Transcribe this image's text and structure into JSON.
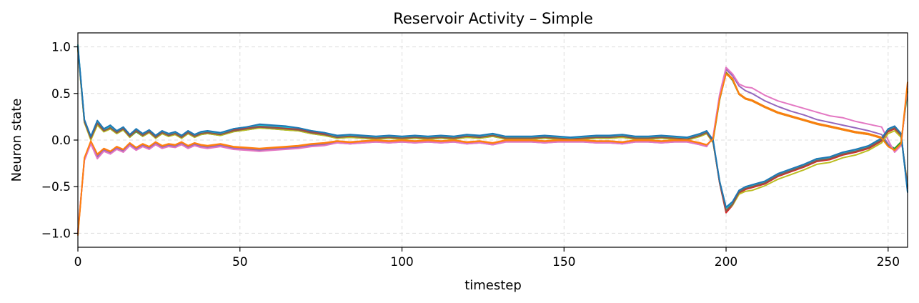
{
  "chart_data": {
    "type": "line",
    "title": "Reservoir Activity – Simple",
    "xlabel": "timestep",
    "ylabel": "Neuron state",
    "xlim": [
      0,
      256
    ],
    "ylim": [
      -1.15,
      1.15
    ],
    "xticks": [
      0,
      50,
      100,
      150,
      200,
      250
    ],
    "xtick_labels": [
      "0",
      "50",
      "100",
      "150",
      "200",
      "250"
    ],
    "yticks": [
      -1.0,
      -0.5,
      0.0,
      0.5,
      1.0
    ],
    "ytick_labels": [
      "−1.0",
      "−0.5",
      "0.0",
      "0.5",
      "1.0"
    ],
    "grid": true,
    "legend": "none",
    "x": [
      0,
      2,
      4,
      6,
      8,
      10,
      12,
      14,
      16,
      18,
      20,
      22,
      24,
      26,
      28,
      30,
      32,
      34,
      36,
      38,
      40,
      44,
      48,
      52,
      56,
      60,
      64,
      68,
      72,
      76,
      80,
      84,
      88,
      92,
      96,
      100,
      104,
      108,
      112,
      116,
      120,
      124,
      128,
      132,
      136,
      140,
      144,
      148,
      152,
      156,
      160,
      164,
      168,
      172,
      176,
      180,
      184,
      188,
      192,
      194,
      196,
      198,
      200,
      202,
      204,
      206,
      208,
      212,
      216,
      220,
      224,
      228,
      232,
      236,
      240,
      244,
      248,
      250,
      252,
      254,
      256
    ],
    "series": [
      {
        "color": "#1f77b4",
        "values": [
          1.0,
          0.2,
          0.02,
          0.18,
          0.1,
          0.13,
          0.08,
          0.12,
          0.04,
          0.1,
          0.05,
          0.09,
          0.03,
          0.08,
          0.05,
          0.07,
          0.03,
          0.08,
          0.04,
          0.07,
          0.08,
          0.06,
          0.1,
          0.12,
          0.14,
          0.13,
          0.12,
          0.11,
          0.08,
          0.06,
          0.03,
          0.04,
          0.03,
          0.02,
          0.03,
          0.02,
          0.03,
          0.02,
          0.03,
          0.02,
          0.04,
          0.03,
          0.05,
          0.02,
          0.02,
          0.02,
          0.03,
          0.02,
          0.01,
          0.02,
          0.03,
          0.03,
          0.04,
          0.02,
          0.02,
          0.03,
          0.02,
          0.01,
          0.05,
          0.08,
          -0.02,
          -0.45,
          -0.74,
          -0.68,
          -0.56,
          -0.52,
          -0.5,
          -0.46,
          -0.38,
          -0.33,
          -0.28,
          -0.22,
          -0.2,
          -0.15,
          -0.12,
          -0.08,
          0.0,
          0.1,
          0.13,
          0.05,
          -0.5
        ]
      },
      {
        "color": "#ff7f0e",
        "values": [
          -1.0,
          -0.2,
          -0.02,
          -0.16,
          -0.1,
          -0.13,
          -0.08,
          -0.11,
          -0.04,
          -0.09,
          -0.05,
          -0.08,
          -0.03,
          -0.07,
          -0.05,
          -0.06,
          -0.03,
          -0.07,
          -0.04,
          -0.06,
          -0.07,
          -0.05,
          -0.08,
          -0.09,
          -0.1,
          -0.09,
          -0.08,
          -0.07,
          -0.05,
          -0.04,
          -0.02,
          -0.03,
          -0.02,
          -0.01,
          -0.02,
          -0.01,
          -0.02,
          -0.01,
          -0.02,
          -0.01,
          -0.03,
          -0.02,
          -0.04,
          -0.01,
          -0.01,
          -0.01,
          -0.02,
          -0.01,
          -0.01,
          -0.01,
          -0.02,
          -0.02,
          -0.03,
          -0.01,
          -0.01,
          -0.02,
          -0.01,
          -0.01,
          -0.04,
          -0.06,
          0.02,
          0.46,
          0.73,
          0.66,
          0.5,
          0.45,
          0.43,
          0.36,
          0.3,
          0.26,
          0.22,
          0.18,
          0.15,
          0.12,
          0.09,
          0.07,
          0.03,
          -0.06,
          -0.1,
          -0.03,
          0.55
        ]
      },
      {
        "color": "#2ca02c",
        "values": [
          0.98,
          0.19,
          0.01,
          0.17,
          0.09,
          0.12,
          0.07,
          0.11,
          0.03,
          0.09,
          0.04,
          0.08,
          0.02,
          0.07,
          0.04,
          0.06,
          0.02,
          0.07,
          0.03,
          0.06,
          0.07,
          0.05,
          0.09,
          0.11,
          0.13,
          0.12,
          0.11,
          0.1,
          0.07,
          0.05,
          0.02,
          0.03,
          0.02,
          0.01,
          0.02,
          0.01,
          0.02,
          0.01,
          0.02,
          0.01,
          0.03,
          0.02,
          0.04,
          0.01,
          0.01,
          0.01,
          0.02,
          0.01,
          0.0,
          0.01,
          0.02,
          0.02,
          0.03,
          0.01,
          0.01,
          0.02,
          0.01,
          0.0,
          0.04,
          0.07,
          0.0,
          0.43,
          0.72,
          0.64,
          0.49,
          0.44,
          0.42,
          0.35,
          0.29,
          0.25,
          0.21,
          0.17,
          0.14,
          0.11,
          0.08,
          0.06,
          0.02,
          -0.05,
          -0.09,
          -0.02,
          0.52
        ]
      },
      {
        "color": "#d62728",
        "values": [
          0.99,
          0.21,
          0.03,
          0.19,
          0.11,
          0.14,
          0.09,
          0.13,
          0.05,
          0.11,
          0.06,
          0.1,
          0.04,
          0.09,
          0.06,
          0.08,
          0.04,
          0.09,
          0.05,
          0.08,
          0.09,
          0.07,
          0.11,
          0.13,
          0.15,
          0.14,
          0.13,
          0.12,
          0.09,
          0.07,
          0.04,
          0.05,
          0.04,
          0.03,
          0.04,
          0.03,
          0.04,
          0.03,
          0.04,
          0.03,
          0.05,
          0.04,
          0.06,
          0.03,
          0.03,
          0.03,
          0.04,
          0.03,
          0.02,
          0.03,
          0.04,
          0.04,
          0.05,
          0.03,
          0.03,
          0.04,
          0.03,
          0.02,
          0.06,
          0.09,
          -0.01,
          -0.46,
          -0.78,
          -0.7,
          -0.57,
          -0.53,
          -0.51,
          -0.47,
          -0.39,
          -0.34,
          -0.29,
          -0.23,
          -0.21,
          -0.16,
          -0.13,
          -0.09,
          -0.01,
          0.09,
          0.12,
          0.04,
          -0.52
        ]
      },
      {
        "color": "#9467bd",
        "values": [
          -0.99,
          -0.21,
          -0.03,
          -0.18,
          -0.11,
          -0.14,
          -0.09,
          -0.12,
          -0.05,
          -0.1,
          -0.06,
          -0.09,
          -0.04,
          -0.08,
          -0.06,
          -0.07,
          -0.04,
          -0.08,
          -0.05,
          -0.07,
          -0.08,
          -0.06,
          -0.09,
          -0.1,
          -0.11,
          -0.1,
          -0.09,
          -0.08,
          -0.06,
          -0.05,
          -0.03,
          -0.04,
          -0.03,
          -0.02,
          -0.03,
          -0.02,
          -0.03,
          -0.02,
          -0.03,
          -0.02,
          -0.04,
          -0.03,
          -0.05,
          -0.02,
          -0.02,
          -0.02,
          -0.03,
          -0.02,
          -0.02,
          -0.02,
          -0.03,
          -0.03,
          -0.04,
          -0.02,
          -0.02,
          -0.03,
          -0.02,
          -0.02,
          -0.05,
          -0.07,
          0.03,
          0.48,
          0.76,
          0.69,
          0.58,
          0.53,
          0.5,
          0.42,
          0.36,
          0.31,
          0.27,
          0.22,
          0.19,
          0.16,
          0.13,
          0.1,
          0.06,
          -0.04,
          -0.12,
          -0.05,
          0.58
        ]
      },
      {
        "color": "#e377c2",
        "values": [
          -0.97,
          -0.22,
          -0.04,
          -0.2,
          -0.12,
          -0.15,
          -0.1,
          -0.13,
          -0.06,
          -0.11,
          -0.07,
          -0.1,
          -0.05,
          -0.09,
          -0.07,
          -0.08,
          -0.05,
          -0.09,
          -0.06,
          -0.08,
          -0.09,
          -0.07,
          -0.1,
          -0.11,
          -0.12,
          -0.11,
          -0.1,
          -0.09,
          -0.07,
          -0.06,
          -0.03,
          -0.04,
          -0.03,
          -0.02,
          -0.03,
          -0.02,
          -0.03,
          -0.02,
          -0.03,
          -0.02,
          -0.04,
          -0.03,
          -0.05,
          -0.02,
          -0.02,
          -0.02,
          -0.03,
          -0.02,
          -0.02,
          -0.02,
          -0.03,
          -0.03,
          -0.04,
          -0.02,
          -0.02,
          -0.03,
          -0.02,
          -0.02,
          -0.05,
          -0.07,
          0.04,
          0.49,
          0.78,
          0.71,
          0.6,
          0.57,
          0.56,
          0.48,
          0.42,
          0.38,
          0.34,
          0.3,
          0.26,
          0.24,
          0.2,
          0.17,
          0.14,
          0.0,
          -0.13,
          -0.06,
          0.6
        ]
      },
      {
        "color": "#bcbd22",
        "values": [
          0.97,
          0.19,
          0.0,
          0.16,
          0.09,
          0.12,
          0.07,
          0.11,
          0.03,
          0.1,
          0.04,
          0.08,
          0.02,
          0.07,
          0.04,
          0.06,
          0.02,
          0.07,
          0.03,
          0.06,
          0.07,
          0.05,
          0.09,
          0.11,
          0.13,
          0.12,
          0.11,
          0.1,
          0.07,
          0.05,
          0.02,
          0.03,
          0.02,
          0.01,
          0.02,
          0.01,
          0.02,
          0.01,
          0.02,
          0.01,
          0.03,
          0.02,
          0.04,
          0.01,
          0.01,
          0.01,
          0.02,
          0.01,
          0.0,
          0.01,
          0.02,
          0.02,
          0.03,
          0.01,
          0.01,
          0.02,
          0.01,
          0.0,
          0.04,
          0.07,
          -0.03,
          -0.44,
          -0.75,
          -0.7,
          -0.58,
          -0.55,
          -0.54,
          -0.49,
          -0.42,
          -0.37,
          -0.32,
          -0.26,
          -0.24,
          -0.19,
          -0.16,
          -0.11,
          -0.03,
          0.07,
          0.1,
          0.03,
          -0.48
        ]
      },
      {
        "color": "#17becf",
        "values": [
          1.02,
          0.21,
          0.03,
          0.2,
          0.11,
          0.15,
          0.09,
          0.13,
          0.05,
          0.12,
          0.06,
          0.1,
          0.04,
          0.09,
          0.06,
          0.08,
          0.04,
          0.09,
          0.05,
          0.08,
          0.09,
          0.07,
          0.12,
          0.14,
          0.16,
          0.15,
          0.14,
          0.13,
          0.1,
          0.08,
          0.04,
          0.05,
          0.04,
          0.03,
          0.04,
          0.03,
          0.04,
          0.03,
          0.04,
          0.03,
          0.05,
          0.04,
          0.06,
          0.03,
          0.03,
          0.03,
          0.04,
          0.03,
          0.02,
          0.03,
          0.04,
          0.04,
          0.05,
          0.03,
          0.03,
          0.04,
          0.03,
          0.02,
          0.06,
          0.09,
          -0.01,
          -0.45,
          -0.73,
          -0.67,
          -0.55,
          -0.51,
          -0.49,
          -0.45,
          -0.37,
          -0.32,
          -0.27,
          -0.21,
          -0.19,
          -0.14,
          -0.11,
          -0.07,
          0.01,
          0.11,
          0.14,
          0.06,
          -0.55
        ]
      },
      {
        "color": "#8c564b",
        "values": [
          0.99,
          0.2,
          0.02,
          0.18,
          0.1,
          0.13,
          0.08,
          0.12,
          0.04,
          0.1,
          0.05,
          0.09,
          0.03,
          0.08,
          0.05,
          0.07,
          0.03,
          0.08,
          0.04,
          0.07,
          0.08,
          0.06,
          0.1,
          0.12,
          0.14,
          0.13,
          0.12,
          0.11,
          0.08,
          0.06,
          0.03,
          0.04,
          0.03,
          0.02,
          0.03,
          0.02,
          0.03,
          0.02,
          0.03,
          0.02,
          0.04,
          0.03,
          0.05,
          0.02,
          0.02,
          0.02,
          0.03,
          0.02,
          0.01,
          0.02,
          0.03,
          0.03,
          0.04,
          0.02,
          0.02,
          0.03,
          0.02,
          0.01,
          0.05,
          0.08,
          -0.02,
          -0.46,
          -0.76,
          -0.69,
          -0.56,
          -0.52,
          -0.5,
          -0.46,
          -0.38,
          -0.33,
          -0.28,
          -0.22,
          -0.2,
          -0.15,
          -0.12,
          -0.08,
          0.0,
          0.1,
          0.13,
          0.05,
          -0.5
        ]
      },
      {
        "color": "#1f77b4",
        "values": [
          1.0,
          0.22,
          0.04,
          0.21,
          0.12,
          0.16,
          0.1,
          0.14,
          0.06,
          0.12,
          0.07,
          0.11,
          0.05,
          0.1,
          0.07,
          0.09,
          0.05,
          0.1,
          0.06,
          0.09,
          0.1,
          0.08,
          0.12,
          0.14,
          0.17,
          0.16,
          0.15,
          0.13,
          0.1,
          0.08,
          0.05,
          0.06,
          0.05,
          0.04,
          0.05,
          0.04,
          0.05,
          0.04,
          0.05,
          0.04,
          0.06,
          0.05,
          0.07,
          0.04,
          0.04,
          0.04,
          0.05,
          0.04,
          0.03,
          0.04,
          0.05,
          0.05,
          0.06,
          0.04,
          0.04,
          0.05,
          0.04,
          0.03,
          0.07,
          0.1,
          0.0,
          -0.44,
          -0.72,
          -0.66,
          -0.54,
          -0.5,
          -0.48,
          -0.44,
          -0.36,
          -0.31,
          -0.26,
          -0.2,
          -0.18,
          -0.13,
          -0.1,
          -0.06,
          0.02,
          0.12,
          0.15,
          0.07,
          -0.56
        ]
      },
      {
        "color": "#ff7f0e",
        "values": [
          -1.02,
          -0.19,
          -0.01,
          -0.15,
          -0.09,
          -0.12,
          -0.07,
          -0.1,
          -0.03,
          -0.08,
          -0.04,
          -0.07,
          -0.02,
          -0.06,
          -0.04,
          -0.05,
          -0.02,
          -0.06,
          -0.03,
          -0.05,
          -0.06,
          -0.04,
          -0.07,
          -0.08,
          -0.09,
          -0.08,
          -0.07,
          -0.06,
          -0.04,
          -0.03,
          -0.01,
          -0.02,
          -0.01,
          0.0,
          -0.01,
          0.0,
          -0.01,
          0.0,
          -0.01,
          0.0,
          -0.02,
          -0.01,
          -0.03,
          0.0,
          0.0,
          0.0,
          -0.01,
          0.0,
          0.0,
          0.0,
          -0.01,
          -0.01,
          -0.02,
          0.0,
          0.0,
          -0.01,
          0.0,
          0.0,
          -0.03,
          -0.05,
          0.01,
          0.44,
          0.71,
          0.65,
          0.49,
          0.44,
          0.42,
          0.35,
          0.29,
          0.25,
          0.21,
          0.17,
          0.14,
          0.11,
          0.08,
          0.06,
          0.02,
          -0.07,
          -0.11,
          -0.04,
          0.62
        ]
      }
    ]
  }
}
